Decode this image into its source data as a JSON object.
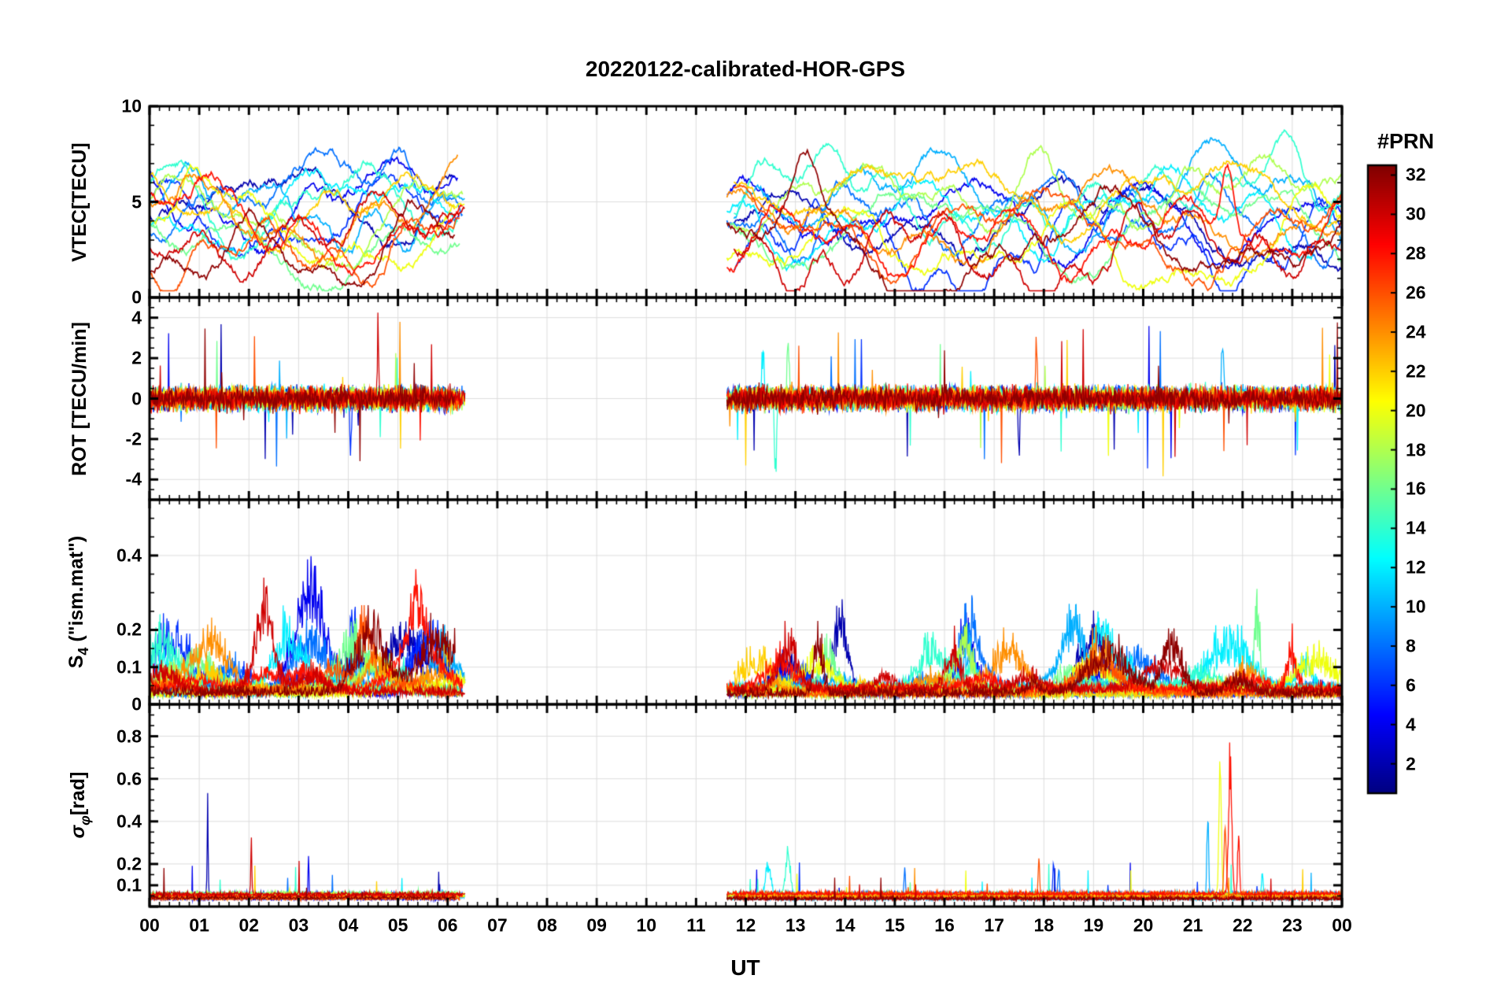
{
  "title": "20220122-calibrated-HOR-GPS",
  "xlabel": "UT",
  "colorbar": {
    "label": "#PRN",
    "min": 0.5,
    "max": 32.5,
    "ticks": [
      32,
      30,
      28,
      26,
      24,
      22,
      20,
      18,
      16,
      14,
      12,
      10,
      8,
      6,
      4,
      2
    ],
    "colormap": "jet"
  },
  "chart_data": {
    "type": "line",
    "title": "20220122-calibrated-HOR-GPS",
    "xlabel": "UT",
    "x_unit": "hours UT",
    "x_range_hours": [
      0,
      24
    ],
    "x_ticks": [
      "00",
      "01",
      "02",
      "03",
      "04",
      "05",
      "06",
      "07",
      "08",
      "09",
      "10",
      "11",
      "12",
      "13",
      "14",
      "15",
      "16",
      "17",
      "18",
      "19",
      "20",
      "21",
      "22",
      "23",
      "00"
    ],
    "data_gap_ut": [
      6.35,
      11.62
    ],
    "series_prns": [
      2,
      4,
      6,
      8,
      10,
      12,
      14,
      16,
      18,
      20,
      22,
      24,
      26,
      28,
      30,
      32
    ],
    "legend": "per-PRN GPS satellite traces colored by jet colormap, PRN 1 (dark blue) to 32 (dark red)",
    "grid": true,
    "panels": [
      {
        "id": "vtec",
        "label_pre": "VTEC[TECU]",
        "label_sub": "",
        "label_post": "",
        "ylim": [
          0,
          10
        ],
        "yticks": [
          0,
          5,
          10
        ],
        "ytick_labels": [
          "0",
          "5",
          "10"
        ],
        "description": "Vertical TEC per PRN, values mostly 1-7 TECU, peaks near 9 TECU around 13:00 and 21:45 UT"
      },
      {
        "id": "rot",
        "label_pre": "ROT [TECU/min]",
        "label_sub": "",
        "label_post": "",
        "ylim": [
          -5,
          5
        ],
        "yticks": [
          -4,
          -2,
          0,
          2,
          4
        ],
        "ytick_labels": [
          "-4",
          "-2",
          "0",
          "2",
          "4"
        ],
        "description": "Rate of TEC change, noisy band around 0 with spikes to +/-4"
      },
      {
        "id": "s4",
        "label_pre": "S",
        "label_sub": "4",
        "label_post": " (\"ism.mat\")",
        "ylim": [
          0,
          0.55
        ],
        "yticks": [
          0,
          0.1,
          0.2,
          0.4
        ],
        "ytick_labels": [
          "0",
          "0.1",
          "0.2",
          "0.4"
        ],
        "description": "Amplitude scintillation index, baseline ~0.03 with bursts up to ~0.35"
      },
      {
        "id": "sigma",
        "label_pre": "σ",
        "label_sub": "φ",
        "label_post": "[rad]",
        "ylim": [
          0,
          0.95
        ],
        "yticks": [
          0,
          0.1,
          0.2,
          0.4,
          0.6,
          0.8
        ],
        "ytick_labels": [
          "",
          "0.1",
          "0.2",
          "0.4",
          "0.6",
          "0.8"
        ],
        "description": "Phase scintillation index, baseline ~0.05 with isolated spikes, largest ~0.9 near 21:45 UT"
      }
    ],
    "events": {
      "vtec": [
        {
          "prn": 32,
          "t": 13.2,
          "amp": 4.2,
          "w": 0.45
        },
        {
          "prn": 20,
          "t": 0.9,
          "amp": 3.2,
          "w": 0.4
        },
        {
          "prn": 18,
          "t": 18.0,
          "amp": 3.8,
          "w": 0.6
        },
        {
          "prn": 28,
          "t": 21.7,
          "amp": 4.3,
          "w": 0.18
        },
        {
          "prn": 14,
          "t": 22.7,
          "amp": 3.2,
          "w": 0.7
        },
        {
          "prn": 8,
          "t": 5.0,
          "amp": 2.8,
          "w": 0.35
        },
        {
          "prn": 10,
          "t": 2.6,
          "amp": 2.5,
          "w": 0.3
        }
      ],
      "rot": [
        {
          "prn": 12,
          "t": 12.35,
          "amp": 4.0,
          "w": 0.03
        },
        {
          "prn": 14,
          "t": 12.6,
          "amp": -4.2,
          "w": 0.03
        },
        {
          "prn": 16,
          "t": 12.85,
          "amp": 3.8,
          "w": 0.03
        },
        {
          "prn": 2,
          "t": 17.5,
          "amp": -3.9,
          "w": 0.02
        },
        {
          "prn": 26,
          "t": 17.85,
          "amp": 4.4,
          "w": 0.02
        },
        {
          "prn": 10,
          "t": 21.6,
          "amp": 4.0,
          "w": 0.03
        },
        {
          "prn": 6,
          "t": 4.05,
          "amp": -3.6,
          "w": 0.02
        },
        {
          "prn": 30,
          "t": 4.6,
          "amp": 4.3,
          "w": 0.02
        }
      ],
      "s4": [
        {
          "prn": 2,
          "t": 13.9,
          "amp": 0.3,
          "w": 0.22
        },
        {
          "prn": 4,
          "t": 16.45,
          "amp": 0.24,
          "w": 0.28
        },
        {
          "prn": 10,
          "t": 18.6,
          "amp": 0.26,
          "w": 0.3
        },
        {
          "prn": 12,
          "t": 19.15,
          "amp": 0.24,
          "w": 0.25
        },
        {
          "prn": 32,
          "t": 20.6,
          "amp": 0.22,
          "w": 0.28
        },
        {
          "prn": 26,
          "t": 4.35,
          "amp": 0.3,
          "w": 0.22
        },
        {
          "prn": 28,
          "t": 5.4,
          "amp": 0.26,
          "w": 0.28
        },
        {
          "prn": 6,
          "t": 4.1,
          "amp": 0.31,
          "w": 0.12
        },
        {
          "prn": 16,
          "t": 22.3,
          "amp": 0.3,
          "w": 0.09
        },
        {
          "prn": 30,
          "t": 12.85,
          "amp": 0.2,
          "w": 0.25
        },
        {
          "prn": 12,
          "t": 0.3,
          "amp": 0.15,
          "w": 0.2
        },
        {
          "prn": 8,
          "t": 16.5,
          "amp": 0.25,
          "w": 0.3
        }
      ],
      "sigma": [
        {
          "prn": 2,
          "t": 1.17,
          "amp": 0.6,
          "w": 0.015
        },
        {
          "prn": 30,
          "t": 2.05,
          "amp": 0.33,
          "w": 0.015
        },
        {
          "prn": 4,
          "t": 3.2,
          "amp": 0.3,
          "w": 0.012
        },
        {
          "prn": 12,
          "t": 12.45,
          "amp": 0.2,
          "w": 0.09
        },
        {
          "prn": 14,
          "t": 12.85,
          "amp": 0.26,
          "w": 0.07
        },
        {
          "prn": 8,
          "t": 15.2,
          "amp": 0.2,
          "w": 0.02
        },
        {
          "prn": 26,
          "t": 17.9,
          "amp": 0.22,
          "w": 0.02
        },
        {
          "prn": 6,
          "t": 18.2,
          "amp": 0.17,
          "w": 0.025
        },
        {
          "prn": 10,
          "t": 21.3,
          "amp": 0.58,
          "w": 0.025
        },
        {
          "prn": 20,
          "t": 21.55,
          "amp": 0.85,
          "w": 0.035
        },
        {
          "prn": 26,
          "t": 21.65,
          "amp": 0.5,
          "w": 0.03
        },
        {
          "prn": 28,
          "t": 21.75,
          "amp": 0.88,
          "w": 0.045
        },
        {
          "prn": 28,
          "t": 21.92,
          "amp": 0.42,
          "w": 0.025
        },
        {
          "prn": 12,
          "t": 22.4,
          "amp": 0.16,
          "w": 0.03
        },
        {
          "prn": 8,
          "t": 18.3,
          "amp": 0.2,
          "w": 0.02
        }
      ]
    }
  }
}
